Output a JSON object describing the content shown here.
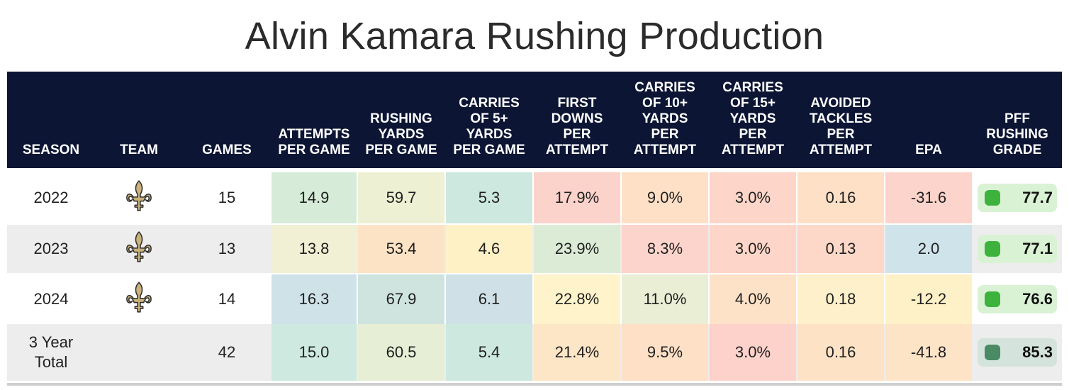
{
  "title": "Alvin Kamara Rushing Production",
  "headers": [
    "SEASON",
    "TEAM",
    "GAMES",
    "ATTEMPTS\nPER GAME",
    "RUSHING\nYARDS\nPER GAME",
    "CARRIES\nOF 5+\nYARDS\nPER GAME",
    "FIRST\nDOWNS\nPER\nATTEMPT",
    "CARRIES\nOF 10+\nYARDS\nPER\nATTEMPT",
    "CARRIES\nOF 15+\nYARDS\nPER\nATTEMPT",
    "AVOIDED\nTACKLES\nPER\nATTEMPT",
    "EPA",
    "PFF\nRUSHING\nGRADE"
  ],
  "team_logo_icon": "fleur-de-lis-icon",
  "rows": [
    {
      "season": "2022",
      "games": "15",
      "cells": [
        "14.9",
        "59.7",
        "5.3",
        "17.9%",
        "9.0%",
        "3.0%",
        "0.16",
        "-31.6"
      ],
      "colors": [
        "#d6ecd8",
        "#eef0d4",
        "#cde9df",
        "#fcd3cb",
        "#fde0c6",
        "#fdd6c9",
        "#fde0c6",
        "#fcd4cb"
      ],
      "grade": "77.7",
      "grade_bg": "#d9f2d4",
      "grade_dot": "#3db33d"
    },
    {
      "season": "2023",
      "games": "13",
      "cells": [
        "13.8",
        "53.4",
        "4.6",
        "23.9%",
        "8.3%",
        "3.0%",
        "0.13",
        "2.0"
      ],
      "colors": [
        "#f1efd4",
        "#fde3c5",
        "#fef1c6",
        "#dcebd6",
        "#fcd4cb",
        "#fdd6c9",
        "#fdd7c7",
        "#cfe3ea"
      ],
      "grade": "77.1",
      "grade_bg": "#d9f2d4",
      "grade_dot": "#3db33d"
    },
    {
      "season": "2024",
      "games": "14",
      "cells": [
        "16.3",
        "67.9",
        "6.1",
        "22.8%",
        "11.0%",
        "4.0%",
        "0.18",
        "-12.2"
      ],
      "colors": [
        "#cfe2e8",
        "#cfe3df",
        "#cfe1e6",
        "#fef3cb",
        "#e9eed5",
        "#fde2c8",
        "#fdf0cb",
        "#fef1c8"
      ],
      "grade": "76.6",
      "grade_bg": "#d9f2d4",
      "grade_dot": "#3db33d"
    },
    {
      "season": "3 Year\nTotal",
      "games": "42",
      "cells": [
        "15.0",
        "60.5",
        "5.4",
        "21.4%",
        "9.5%",
        "3.0%",
        "0.16",
        "-41.8"
      ],
      "colors": [
        "#cde9e0",
        "#e6eed5",
        "#cde9df",
        "#fde6c6",
        "#fde0c6",
        "#fcd2cb",
        "#fde2c6",
        "#fde4c7"
      ],
      "grade": "85.3",
      "grade_bg": "#d4e4dc",
      "grade_dot": "#4a8b66"
    }
  ]
}
